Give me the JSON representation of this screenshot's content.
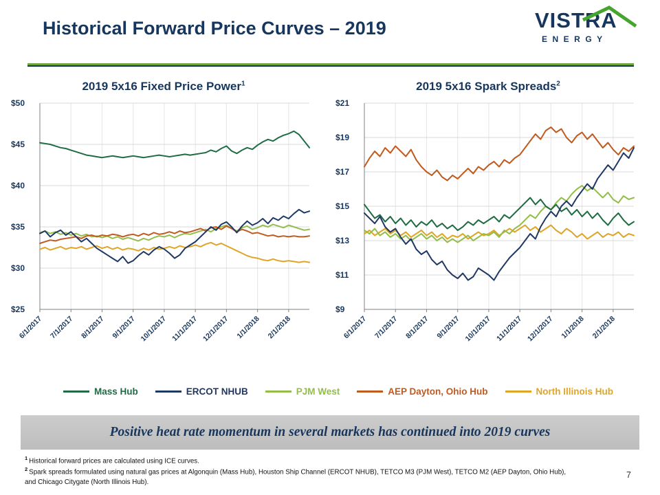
{
  "slide": {
    "title": "Historical Forward Price Curves – 2019",
    "page_number": "7",
    "logo": {
      "brand": "VISTRA",
      "sub": "ENERGY"
    },
    "banner": "Positive heat rate momentum in several markets has continued into 2019 curves",
    "footnotes": [
      {
        "sup": "1",
        "text": "Historical forward prices are calculated using ICE curves."
      },
      {
        "sup": "2",
        "text": "Spark spreads formulated using natural gas prices at Algonquin (Mass Hub), Houston Ship Channel (ERCOT NHUB), TETCO M3 (PJM West), TETCO M2 (AEP Dayton, Ohio Hub), and Chicago Citygate (North Illinois Hub)."
      }
    ]
  },
  "legend": [
    {
      "label": "Mass Hub",
      "color": "#1F6C43"
    },
    {
      "label": "ERCOT NHUB",
      "color": "#1F3864"
    },
    {
      "label": "PJM West",
      "color": "#94BD4B"
    },
    {
      "label": "AEP Dayton, Ohio Hub",
      "color": "#C05A1E"
    },
    {
      "label": "North Illinois Hub",
      "color": "#E0A526"
    }
  ],
  "chart_data": [
    {
      "type": "line",
      "title": "2019 5x16 Fixed Price Power",
      "title_sup": "1",
      "xlabel": "",
      "ylabel": "",
      "ylim": [
        25,
        50
      ],
      "y_ticks": [
        50,
        45,
        40,
        35,
        30,
        25
      ],
      "y_tick_labels": [
        "$50",
        "$45",
        "$40",
        "$35",
        "$30",
        "$25"
      ],
      "x_tick_labels": [
        "6/1/2017",
        "7/1/2017",
        "8/1/2017",
        "9/1/2017",
        "10/1/2017",
        "11/1/2017",
        "12/1/2017",
        "1/1/2018",
        "2/1/2018"
      ],
      "x_points_per_tick": 6,
      "grid": true,
      "legend_position": "bottom-shared",
      "draw_order": [
        4,
        2,
        3,
        0,
        1
      ],
      "series": [
        {
          "name": "Mass Hub",
          "values": [
            45.2,
            45.1,
            45.0,
            44.8,
            44.6,
            44.5,
            44.3,
            44.1,
            43.9,
            43.7,
            43.6,
            43.5,
            43.4,
            43.5,
            43.6,
            43.5,
            43.4,
            43.5,
            43.6,
            43.5,
            43.4,
            43.5,
            43.6,
            43.7,
            43.6,
            43.5,
            43.6,
            43.7,
            43.8,
            43.7,
            43.8,
            43.9,
            44.0,
            44.3,
            44.1,
            44.5,
            44.8,
            44.2,
            43.9,
            44.3,
            44.6,
            44.4,
            44.9,
            45.3,
            45.6,
            45.4,
            45.8,
            46.1,
            46.3,
            46.6,
            46.2,
            45.4,
            44.6
          ]
        },
        {
          "name": "ERCOT NHUB",
          "values": [
            34.2,
            34.5,
            33.8,
            34.3,
            34.6,
            34.0,
            34.4,
            33.8,
            33.2,
            33.6,
            33.0,
            32.4,
            32.0,
            31.6,
            31.2,
            30.8,
            31.4,
            30.6,
            30.9,
            31.5,
            32.0,
            31.6,
            32.2,
            32.6,
            32.3,
            31.8,
            31.2,
            31.6,
            32.4,
            32.8,
            33.2,
            33.8,
            34.4,
            35.0,
            34.6,
            35.3,
            35.6,
            35.0,
            34.3,
            35.1,
            35.7,
            35.2,
            35.5,
            36.0,
            35.4,
            36.1,
            35.8,
            36.3,
            36.0,
            36.6,
            37.1,
            36.7,
            36.9
          ]
        },
        {
          "name": "PJM West",
          "values": [
            34.3,
            34.5,
            34.2,
            34.4,
            34.1,
            34.3,
            34.0,
            34.2,
            33.9,
            34.1,
            33.8,
            33.9,
            33.7,
            33.9,
            33.6,
            33.8,
            33.5,
            33.7,
            33.5,
            33.3,
            33.6,
            33.4,
            33.7,
            33.9,
            33.8,
            34.0,
            33.7,
            34.0,
            34.2,
            34.1,
            34.3,
            34.5,
            34.7,
            34.4,
            34.8,
            35.0,
            35.2,
            34.8,
            34.5,
            34.9,
            35.1,
            34.7,
            34.9,
            35.2,
            35.0,
            35.3,
            35.1,
            34.9,
            35.2,
            35.0,
            34.8,
            34.6,
            34.7
          ]
        },
        {
          "name": "AEP Dayton, Ohio Hub",
          "values": [
            33.0,
            33.2,
            33.4,
            33.3,
            33.5,
            33.6,
            33.7,
            33.8,
            33.6,
            33.9,
            34.0,
            33.8,
            34.0,
            33.9,
            34.1,
            34.0,
            33.8,
            34.0,
            34.1,
            33.9,
            34.2,
            34.0,
            34.3,
            34.1,
            34.2,
            34.4,
            34.2,
            34.5,
            34.3,
            34.4,
            34.6,
            34.8,
            34.5,
            34.9,
            35.0,
            34.7,
            35.1,
            34.8,
            34.4,
            34.7,
            34.5,
            34.2,
            34.3,
            34.1,
            33.9,
            34.0,
            33.8,
            33.9,
            33.8,
            33.9,
            33.8,
            33.8,
            33.9
          ]
        },
        {
          "name": "North Illinois Hub",
          "values": [
            32.3,
            32.5,
            32.2,
            32.4,
            32.6,
            32.3,
            32.5,
            32.4,
            32.6,
            32.3,
            32.5,
            32.7,
            32.4,
            32.6,
            32.3,
            32.5,
            32.2,
            32.4,
            32.3,
            32.1,
            32.4,
            32.2,
            32.5,
            32.3,
            32.4,
            32.6,
            32.4,
            32.7,
            32.5,
            32.6,
            32.8,
            32.6,
            32.9,
            33.1,
            32.8,
            33.0,
            32.7,
            32.4,
            32.1,
            31.8,
            31.5,
            31.3,
            31.2,
            31.0,
            30.9,
            31.1,
            30.9,
            30.8,
            30.9,
            30.8,
            30.7,
            30.8,
            30.7
          ]
        }
      ]
    },
    {
      "type": "line",
      "title": "2019 5x16 Spark Spreads",
      "title_sup": "2",
      "xlabel": "",
      "ylabel": "",
      "ylim": [
        9,
        21
      ],
      "y_ticks": [
        21,
        19,
        17,
        15,
        13,
        11,
        9
      ],
      "y_tick_labels": [
        "$21",
        "$19",
        "$17",
        "$15",
        "$13",
        "$11",
        "$9"
      ],
      "x_tick_labels": [
        "6/1/2017",
        "7/1/2017",
        "8/1/2017",
        "9/1/2017",
        "10/1/2017",
        "11/1/2017",
        "12/1/2017",
        "1/1/2018",
        "2/1/2018"
      ],
      "x_points_per_tick": 6,
      "grid": true,
      "legend_position": "bottom-shared",
      "draw_order": [
        4,
        2,
        0,
        3,
        1
      ],
      "series": [
        {
          "name": "Mass Hub",
          "values": [
            15.1,
            14.7,
            14.3,
            14.5,
            14.1,
            14.4,
            14.0,
            14.3,
            13.9,
            14.2,
            13.8,
            14.1,
            13.9,
            14.2,
            13.8,
            14.0,
            13.7,
            13.9,
            13.6,
            13.8,
            14.1,
            13.9,
            14.2,
            14.0,
            14.2,
            14.4,
            14.1,
            14.5,
            14.3,
            14.6,
            14.9,
            15.2,
            15.5,
            15.1,
            15.4,
            15.0,
            14.8,
            15.1,
            14.7,
            14.9,
            14.5,
            14.8,
            14.4,
            14.7,
            14.3,
            14.6,
            14.2,
            13.9,
            14.3,
            14.6,
            14.2,
            13.9,
            14.1
          ]
        },
        {
          "name": "ERCOT NHUB",
          "values": [
            14.6,
            14.3,
            14.0,
            14.4,
            13.8,
            13.5,
            13.7,
            13.2,
            12.8,
            13.1,
            12.5,
            12.2,
            12.4,
            11.9,
            11.6,
            11.8,
            11.3,
            11.0,
            10.8,
            11.1,
            10.7,
            10.9,
            11.4,
            11.2,
            11.0,
            10.7,
            11.2,
            11.6,
            12.0,
            12.3,
            12.6,
            13.0,
            13.4,
            13.1,
            13.8,
            14.3,
            14.7,
            14.4,
            15.0,
            15.3,
            15.0,
            15.5,
            15.9,
            16.3,
            16.0,
            16.6,
            17.0,
            17.4,
            17.1,
            17.6,
            18.1,
            17.8,
            18.4
          ]
        },
        {
          "name": "PJM West",
          "values": [
            13.6,
            13.4,
            13.7,
            13.3,
            13.5,
            13.2,
            13.4,
            13.1,
            13.3,
            13.0,
            13.2,
            13.4,
            13.1,
            13.3,
            13.0,
            13.2,
            12.9,
            13.1,
            12.9,
            13.1,
            13.3,
            13.0,
            13.2,
            13.4,
            13.3,
            13.5,
            13.2,
            13.6,
            13.4,
            13.7,
            13.9,
            14.2,
            14.5,
            14.3,
            14.7,
            15.0,
            14.8,
            15.2,
            15.5,
            15.3,
            15.7,
            16.0,
            16.2,
            15.9,
            16.1,
            15.8,
            15.5,
            15.8,
            15.4,
            15.2,
            15.6,
            15.4,
            15.5
          ]
        },
        {
          "name": "AEP Dayton, Ohio Hub",
          "values": [
            17.3,
            17.8,
            18.2,
            17.9,
            18.4,
            18.1,
            18.5,
            18.2,
            17.9,
            18.3,
            17.7,
            17.3,
            17.0,
            16.8,
            17.1,
            16.7,
            16.5,
            16.8,
            16.6,
            16.9,
            17.2,
            16.9,
            17.3,
            17.1,
            17.4,
            17.6,
            17.3,
            17.7,
            17.5,
            17.8,
            18.0,
            18.4,
            18.8,
            19.2,
            18.9,
            19.4,
            19.6,
            19.3,
            19.5,
            19.0,
            18.7,
            19.1,
            19.3,
            18.9,
            19.2,
            18.8,
            18.4,
            18.7,
            18.3,
            18.0,
            18.4,
            18.2,
            18.5
          ]
        },
        {
          "name": "North Illinois Hub",
          "values": [
            13.4,
            13.6,
            13.3,
            13.5,
            13.7,
            13.4,
            13.6,
            13.3,
            13.5,
            13.2,
            13.4,
            13.6,
            13.3,
            13.5,
            13.2,
            13.4,
            13.1,
            13.3,
            13.2,
            13.4,
            13.1,
            13.3,
            13.5,
            13.3,
            13.4,
            13.6,
            13.3,
            13.5,
            13.7,
            13.5,
            13.7,
            13.9,
            13.6,
            13.8,
            13.5,
            13.7,
            13.9,
            13.6,
            13.4,
            13.7,
            13.5,
            13.2,
            13.4,
            13.1,
            13.3,
            13.5,
            13.2,
            13.4,
            13.3,
            13.5,
            13.2,
            13.4,
            13.3
          ]
        }
      ]
    }
  ]
}
